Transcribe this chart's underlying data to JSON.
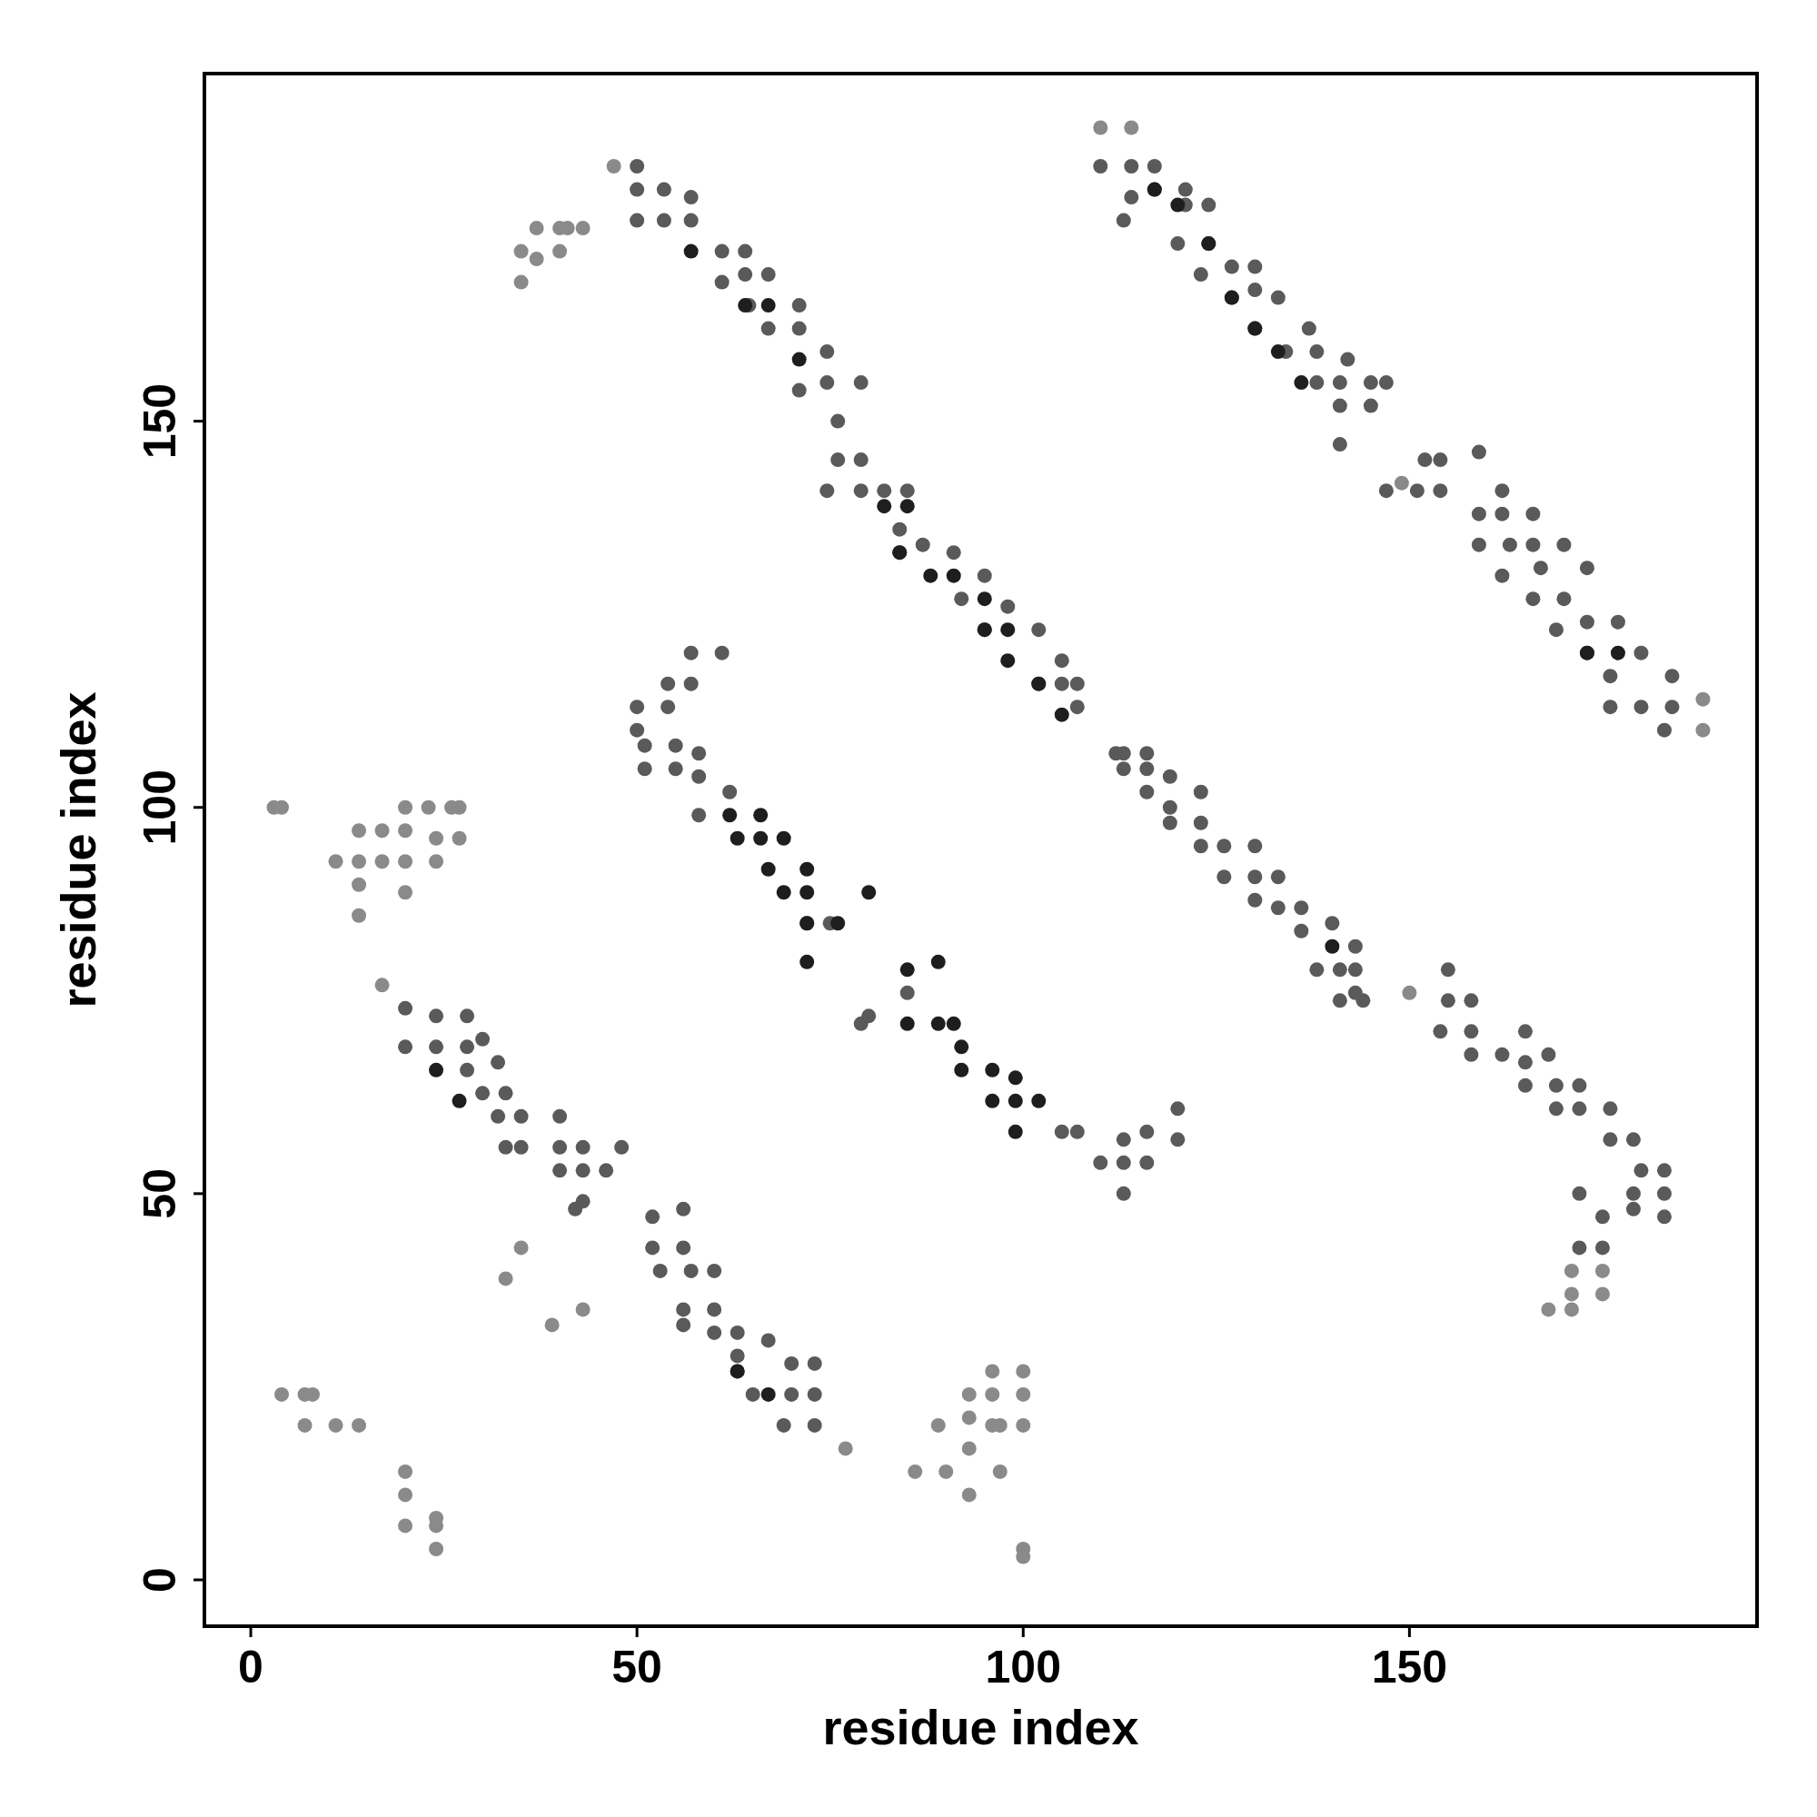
{
  "chart_data": {
    "type": "scatter",
    "xlabel": "residue index",
    "ylabel": "residue index",
    "xlim": [
      -6,
      195
    ],
    "ylim": [
      -6,
      195
    ],
    "xticks": [
      0,
      50,
      100,
      150
    ],
    "yticks": [
      0,
      50,
      100,
      150
    ],
    "grid": false,
    "marker": "circle",
    "series": [
      {
        "color": "#8a8a8a",
        "x": [
          3,
          4,
          11,
          14,
          14,
          14,
          14,
          17,
          17,
          20,
          20,
          20,
          20,
          23,
          24,
          24,
          26,
          27,
          27,
          4,
          7,
          8,
          7,
          11,
          14,
          20,
          20,
          20,
          24,
          24,
          24,
          86,
          89,
          90,
          93,
          93,
          93,
          93,
          96,
          96,
          96,
          97,
          97,
          100,
          100,
          100,
          100,
          100,
          35,
          35,
          37,
          37,
          40,
          40,
          43,
          41,
          39,
          43,
          33,
          35,
          17,
          168,
          171,
          171,
          175,
          175,
          171,
          110,
          114,
          47,
          188,
          188,
          150,
          149,
          77
        ],
        "values": [
          100,
          100,
          93,
          97,
          93,
          90,
          86,
          97,
          93,
          100,
          97,
          93,
          89,
          100,
          96,
          93,
          100,
          96,
          100,
          24,
          24,
          24,
          20,
          20,
          20,
          14,
          11,
          7,
          8,
          7,
          4,
          14,
          20,
          14,
          24,
          21,
          17,
          11,
          27,
          24,
          20,
          14,
          20,
          27,
          24,
          20,
          4,
          3,
          172,
          168,
          171,
          175,
          175,
          172,
          175,
          175,
          33,
          35,
          39,
          43,
          77,
          35,
          35,
          37,
          37,
          40,
          40,
          188,
          188,
          183,
          114,
          110,
          76,
          142,
          17
        ]
      },
      {
        "color": "#5a5a5a",
        "x": [
          50,
          50,
          53.5,
          57,
          50,
          53.5,
          57,
          61,
          64,
          61,
          64,
          67,
          64.5,
          71,
          67,
          71,
          74.6,
          71,
          74.6,
          79,
          76,
          76,
          79,
          74.6,
          79,
          82,
          85,
          84,
          87,
          84,
          91,
          95,
          92,
          98,
          95,
          102,
          105,
          102,
          105,
          107,
          107,
          110,
          114,
          117,
          114,
          117,
          121,
          113,
          121,
          124,
          120,
          124,
          123,
          127,
          130,
          127,
          130,
          133,
          130,
          137,
          134,
          138,
          138,
          141,
          142,
          145,
          147,
          141,
          145,
          141,
          147,
          152,
          154,
          151,
          154,
          159,
          159,
          162,
          162,
          159,
          163,
          166,
          166,
          162,
          167,
          170,
          166,
          170,
          173,
          169,
          173,
          177,
          173,
          180,
          176,
          184,
          176,
          180,
          184,
          183,
          50,
          50,
          54,
          54,
          57,
          57,
          61,
          51,
          55,
          58,
          51,
          55,
          58,
          58,
          62,
          72,
          75,
          79,
          80,
          85,
          105,
          107,
          110,
          113,
          113,
          116,
          116,
          120,
          120,
          113,
          112,
          113,
          113,
          116,
          116,
          116,
          119,
          119,
          119,
          123,
          123,
          126,
          130,
          133,
          136,
          138,
          141,
          143,
          141,
          143,
          144,
          155,
          155,
          154,
          158,
          158,
          158,
          162,
          165,
          165,
          168,
          169,
          172,
          172,
          176,
          176,
          179,
          180,
          183,
          172,
          175,
          179,
          183,
          183,
          179,
          172,
          175,
          123,
          126,
          130,
          130,
          133,
          136,
          140,
          143,
          165,
          169,
          20,
          20,
          24,
          28,
          24,
          28,
          30,
          28,
          32,
          30,
          33,
          32,
          35,
          33,
          35,
          40,
          40,
          40,
          43,
          43,
          46,
          48,
          42,
          43,
          52,
          52,
          56,
          56,
          53,
          57,
          60,
          56,
          60,
          56,
          60,
          63,
          63,
          67,
          63,
          70,
          65,
          70,
          73,
          73,
          69,
          73
        ],
        "values": [
          183,
          180,
          180,
          179,
          176,
          176,
          176,
          172,
          172,
          168,
          169,
          169,
          165,
          165,
          162,
          162,
          159,
          154,
          155,
          155,
          150,
          145,
          145,
          141,
          141,
          141,
          141,
          136,
          134,
          133,
          133,
          130,
          127,
          126,
          123,
          123,
          119,
          116,
          116,
          116,
          113,
          183,
          183,
          183,
          179,
          180,
          180,
          176,
          178,
          178,
          173,
          173,
          169,
          170,
          170,
          166,
          167,
          166,
          162,
          162,
          159,
          159,
          155,
          155,
          158,
          155,
          155,
          152,
          152,
          147,
          141,
          145,
          145,
          141,
          141,
          146,
          138,
          141,
          138,
          134,
          134,
          138,
          134,
          130,
          131,
          134,
          127,
          127,
          131,
          123,
          124,
          124,
          120,
          120,
          117,
          117,
          113,
          113,
          113,
          110,
          113,
          110,
          113,
          116,
          116,
          120,
          120,
          108,
          108,
          107,
          105,
          105,
          104,
          99,
          102,
          85,
          85,
          72,
          73,
          76,
          58,
          58,
          54,
          57,
          54,
          58,
          54,
          61,
          57,
          50,
          107,
          105,
          107,
          107,
          105,
          102,
          104,
          100,
          98,
          102,
          98,
          95,
          95,
          91,
          87,
          79,
          79,
          79,
          75,
          76,
          75,
          79,
          75,
          71,
          75,
          71,
          68,
          68,
          71,
          67,
          68,
          64,
          64,
          61,
          61,
          57,
          57,
          53,
          53,
          50,
          47,
          50,
          50,
          47,
          48,
          43,
          43,
          95,
          91,
          91,
          88,
          87,
          84,
          85,
          82,
          64,
          61,
          74,
          69,
          73,
          73,
          69,
          69,
          70,
          66,
          67,
          63,
          63,
          60,
          60,
          56,
          56,
          60,
          56,
          53,
          56,
          53,
          53,
          56,
          48,
          49,
          47,
          43,
          48,
          43,
          40,
          40,
          40,
          35,
          35,
          33,
          32,
          32,
          29,
          31,
          27,
          28,
          24,
          24,
          28,
          24,
          20,
          20
        ]
      },
      {
        "color": "#1e1e1e",
        "x": [
          57,
          64,
          67,
          71,
          82,
          85,
          84,
          88,
          91,
          95,
          95,
          98,
          98,
          102,
          105,
          117,
          120,
          124,
          127,
          130,
          133,
          136,
          140,
          173,
          177,
          62,
          66,
          63,
          66,
          67,
          69,
          69,
          72,
          72,
          72,
          72,
          76,
          80,
          85,
          89,
          85,
          89,
          91,
          92,
          92,
          96,
          96,
          99,
          99,
          102,
          99,
          24,
          27,
          63,
          67
        ],
        "values": [
          172,
          165,
          165,
          158,
          139,
          139,
          133,
          130,
          130,
          127,
          123,
          123,
          119,
          116,
          112,
          180,
          178,
          173,
          166,
          162,
          159,
          155,
          82,
          120,
          120,
          99,
          99,
          96,
          96,
          92,
          96,
          89,
          92,
          89,
          85,
          80,
          85,
          89,
          79,
          80,
          72,
          72,
          72,
          69,
          66,
          66,
          62,
          65,
          62,
          62,
          58,
          66,
          62,
          27,
          24
        ]
      }
    ]
  }
}
